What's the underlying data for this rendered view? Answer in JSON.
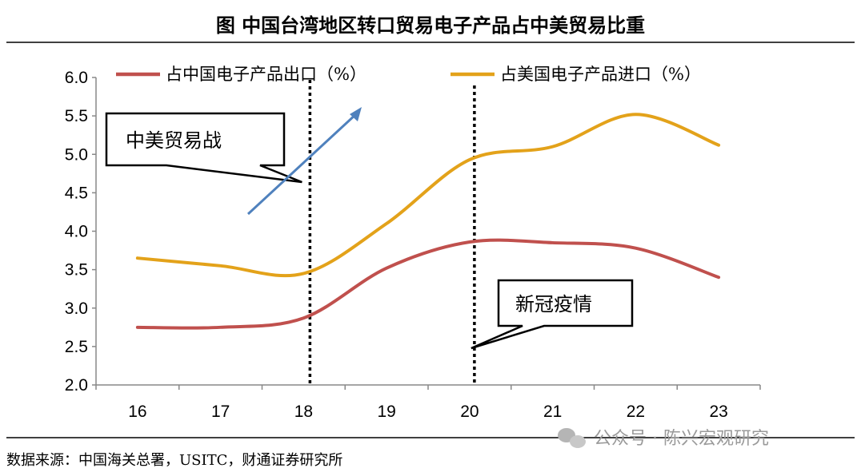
{
  "chart_data": {
    "type": "line",
    "title": "图  中国台湾地区转口贸易电子产品占中美贸易比重",
    "categories": [
      "16",
      "17",
      "18",
      "19",
      "20",
      "21",
      "22",
      "23"
    ],
    "series": [
      {
        "name": "占中国电子产品出口（%）",
        "color": "#C0504D",
        "values": [
          2.75,
          2.75,
          2.87,
          3.52,
          3.86,
          3.85,
          3.78,
          3.4
        ]
      },
      {
        "name": "占美国电子产品进口（%）",
        "color": "#E3A21A",
        "values": [
          3.65,
          3.55,
          3.45,
          4.1,
          4.93,
          5.1,
          5.52,
          5.12
        ]
      }
    ],
    "ylim": [
      2.0,
      6.0
    ],
    "yticks": [
      "2.0",
      "2.5",
      "3.0",
      "3.5",
      "4.0",
      "4.5",
      "5.0",
      "5.5",
      "6.0"
    ],
    "xlabel": "",
    "ylabel": "",
    "grid": false,
    "legend": "top",
    "smooth": true,
    "annotations": [
      {
        "text": "中美贸易战",
        "at_category": "18",
        "marker": "dotted-vertical-line",
        "arrow_color": "#4F81BD"
      },
      {
        "text": "新冠疫情",
        "at_category": "20",
        "marker": "dotted-vertical-line"
      }
    ]
  },
  "source": "数据来源：中国海关总署，USITC，财通证券研究所",
  "watermark": "公众号 · 陈兴宏观研究"
}
